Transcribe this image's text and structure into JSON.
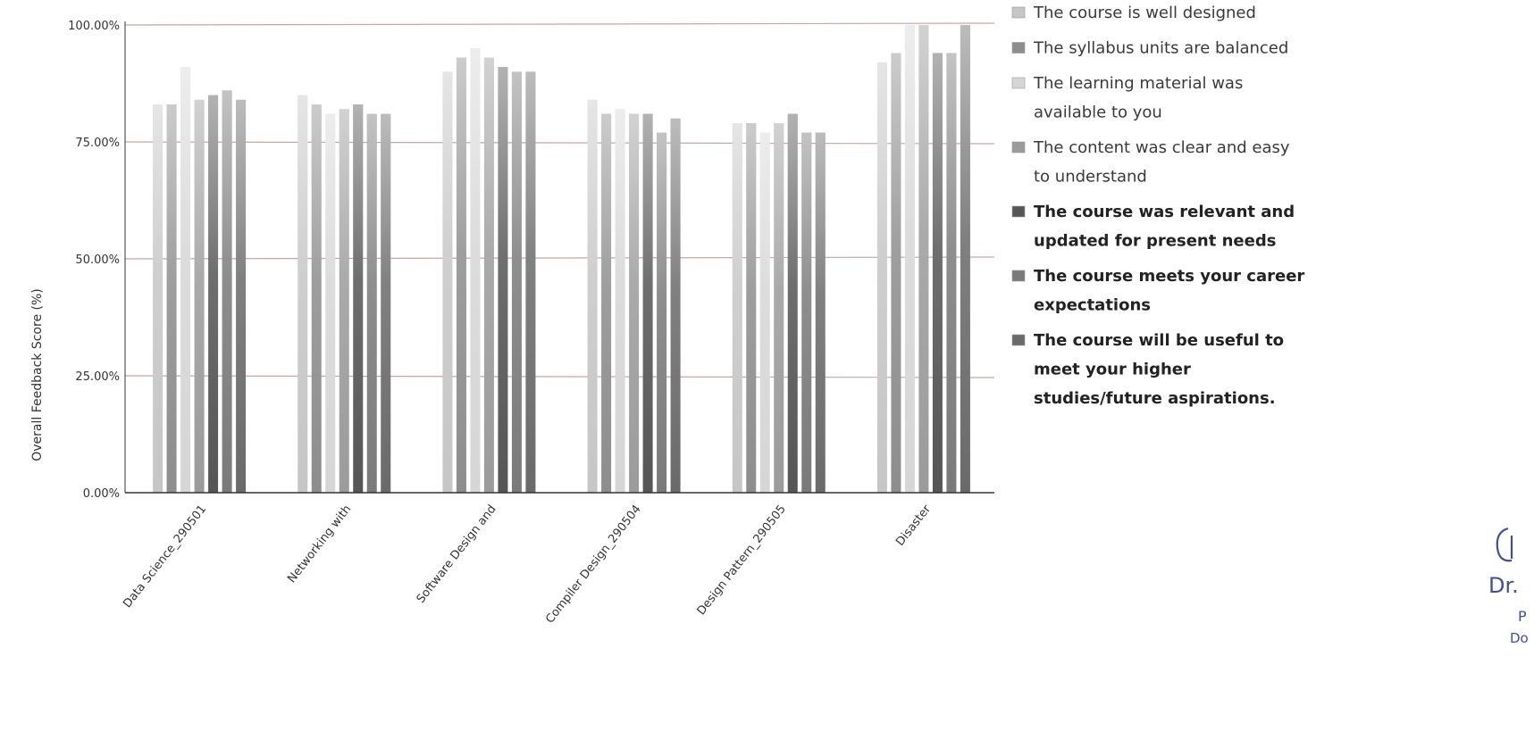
{
  "chart_data": {
    "type": "bar",
    "title": "",
    "xlabel": "",
    "ylabel": "Overall Feedback Score (%)",
    "ylim": [
      0,
      100
    ],
    "yticks": [
      "0.00%",
      "25.00%",
      "50.00%",
      "75.00%",
      "100.00%"
    ],
    "grid": true,
    "legend_position": "right",
    "categories": [
      "Data Science_290501",
      "Networking with",
      "Software Design and",
      "Compiler Design_290504",
      "Design Pattern_290505",
      "Disaster"
    ],
    "series": [
      {
        "name": "The course is well designed",
        "values": [
          83,
          85,
          90,
          84,
          79,
          92
        ]
      },
      {
        "name": "The syllabus units are balanced",
        "values": [
          83,
          83,
          93,
          81,
          79,
          94
        ]
      },
      {
        "name": "The learning material was available to you",
        "values": [
          91,
          81,
          95,
          82,
          77,
          100
        ]
      },
      {
        "name": "The content was clear and easy to understand",
        "values": [
          84,
          82,
          93,
          81,
          79,
          100
        ]
      },
      {
        "name": "The course was relevant and updated for present needs",
        "values": [
          85,
          83,
          91,
          81,
          81,
          94
        ]
      },
      {
        "name": "The course meets your career expectations",
        "values": [
          86,
          81,
          90,
          77,
          77,
          94
        ]
      },
      {
        "name": "The course will be useful to meet your higher studies/future aspirations.",
        "values": [
          84,
          81,
          90,
          80,
          77,
          100
        ]
      }
    ]
  },
  "colors": {
    "series": [
      "#c6c6c6",
      "#8d8d8d",
      "#d6d6d6",
      "#9b9b9b",
      "#555555",
      "#7a7a7a",
      "#6a6a6a"
    ],
    "grid": "#c9a5a5",
    "axis": "#333333",
    "stamp": "#3f4f9a"
  },
  "legend": {
    "lines": [
      [
        "The course is well designed"
      ],
      [
        "The syllabus units are balanced"
      ],
      [
        "The learning material was",
        "available to you"
      ],
      [
        "The content was clear and easy",
        "to understand"
      ],
      [
        "The course was relevant and",
        "updated for present needs"
      ],
      [
        "The course meets your career",
        "expectations"
      ],
      [
        "The course will be useful to",
        "meet your higher",
        "studies/future aspirations."
      ]
    ]
  },
  "stamp": {
    "lines": [
      "Dr.",
      "P",
      "Do"
    ]
  }
}
